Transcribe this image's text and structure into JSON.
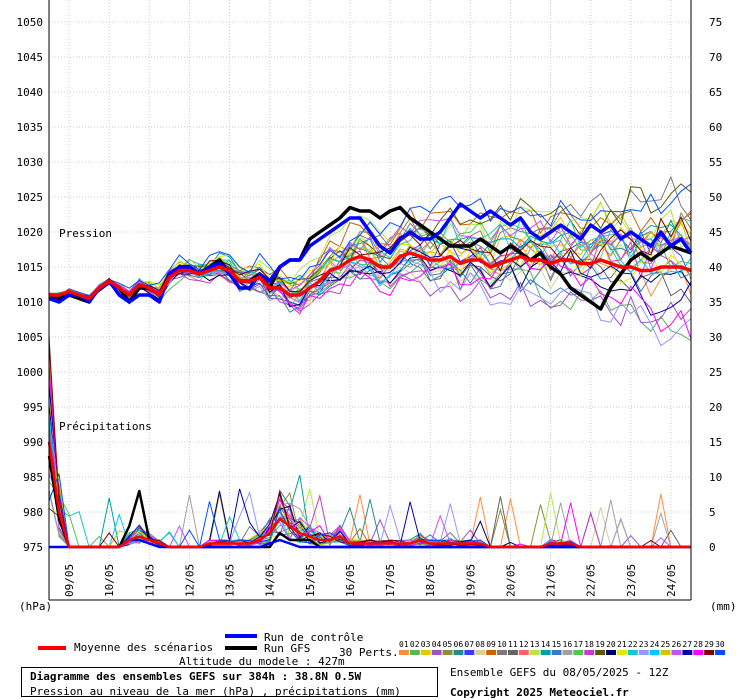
{
  "chart_data": {
    "type": "line",
    "left_axis": {
      "unit": "(hPa)",
      "ticks": [
        1050,
        1045,
        1040,
        1035,
        1030,
        1025,
        1020,
        1015,
        1010,
        1005,
        1000,
        995,
        990,
        985,
        980,
        975
      ],
      "range": [
        975,
        1050
      ]
    },
    "right_axis": {
      "unit": "(mm)",
      "ticks": [
        75,
        70,
        65,
        60,
        55,
        50,
        45,
        40,
        35,
        30,
        25,
        20,
        15,
        10,
        5,
        0
      ],
      "range": [
        0,
        75
      ]
    },
    "x_ticks": [
      "09/05",
      "10/05",
      "11/05",
      "12/05",
      "13/05",
      "14/05",
      "15/05",
      "16/05",
      "17/05",
      "18/05",
      "19/05",
      "20/05",
      "21/05",
      "22/05",
      "23/05",
      "24/05"
    ],
    "panel_labels": {
      "pressure": "Pression",
      "precip": "Précipitations"
    },
    "time_steps_hours": [
      0,
      6,
      12,
      18,
      24,
      30,
      36,
      42,
      48,
      54,
      60,
      66,
      72,
      78,
      84,
      90,
      96,
      102,
      108,
      114,
      120,
      126,
      132,
      138,
      144,
      150,
      156,
      162,
      168,
      174,
      180,
      186,
      192,
      198,
      204,
      210,
      216,
      222,
      228,
      234,
      240,
      246,
      252,
      258,
      264,
      270,
      276,
      282,
      288,
      294,
      300,
      306,
      312,
      318,
      324,
      330,
      336,
      342,
      348,
      354,
      360,
      366,
      372,
      378,
      384
    ],
    "series": [
      {
        "name": "Moyenne des scénarios",
        "color": "#ff0000",
        "width": 3.5,
        "pressure": [
          1011,
          1011,
          1011.5,
          1011,
          1010.5,
          1012,
          1013,
          1012,
          1011,
          1012.5,
          1012,
          1011,
          1013.5,
          1014.5,
          1014.5,
          1014,
          1014.5,
          1015,
          1014.5,
          1013,
          1013,
          1013.5,
          1012,
          1012,
          1011,
          1011,
          1012,
          1013,
          1014.5,
          1015,
          1016,
          1016.5,
          1016,
          1015,
          1015,
          1016.5,
          1017,
          1016.5,
          1016,
          1016,
          1016.5,
          1015.5,
          1016,
          1016,
          1015,
          1015.5,
          1016,
          1016.5,
          1016,
          1016,
          1015.5,
          1016,
          1016,
          1015.5,
          1015.5,
          1016,
          1015.5,
          1015,
          1015,
          1014.5,
          1014.5,
          1015,
          1015,
          1015,
          1014.5
        ],
        "precip": [
          15,
          5,
          0,
          0,
          0,
          0,
          0,
          0,
          1,
          1.5,
          1,
          0.5,
          0,
          0,
          0,
          0,
          0.5,
          0.5,
          0.5,
          0.5,
          0.5,
          1,
          2,
          4,
          3,
          2,
          1.5,
          1,
          1,
          1.5,
          0.5,
          0.5,
          0.5,
          0.5,
          0.5,
          0.5,
          0.5,
          1,
          0.5,
          0.5,
          0.5,
          0.5,
          0.5,
          0.5,
          0,
          0,
          0,
          0,
          0,
          0,
          0.5,
          0.5,
          0.5,
          0,
          0,
          0,
          0,
          0,
          0,
          0,
          0,
          0,
          0,
          0,
          0
        ]
      },
      {
        "name": "Run de contrôle",
        "color": "#0000ff",
        "width": 3.5,
        "pressure": [
          1010.5,
          1010,
          1011,
          1011,
          1010,
          1012,
          1013,
          1011,
          1010,
          1011,
          1011,
          1010,
          1014,
          1015,
          1015,
          1014,
          1015,
          1015.5,
          1014,
          1012,
          1012,
          1014,
          1013,
          1015,
          1016,
          1016,
          1018,
          1019,
          1020,
          1021,
          1022,
          1022,
          1020,
          1018,
          1017,
          1019,
          1020,
          1019,
          1019,
          1020,
          1022,
          1024,
          1023,
          1022,
          1023,
          1022,
          1021,
          1022,
          1020,
          1019,
          1020,
          1021,
          1020,
          1019,
          1021,
          1020,
          1021,
          1019,
          1020,
          1019,
          1018,
          1020,
          1018,
          1019,
          1017
        ],
        "precip": [
          0,
          0,
          0,
          0,
          0,
          0,
          0,
          0,
          1,
          1,
          0.5,
          0,
          0,
          0,
          0,
          0,
          0,
          0,
          0,
          0,
          0,
          0,
          0.5,
          1,
          0.5,
          0,
          0,
          0,
          0,
          0,
          0,
          0,
          0,
          0,
          0,
          0,
          0,
          0,
          0,
          0,
          0,
          0,
          0,
          0,
          0,
          0,
          0,
          0,
          0,
          0,
          0,
          0,
          0,
          0,
          0,
          0,
          0,
          0,
          0,
          0,
          0,
          0,
          0,
          0,
          0
        ]
      },
      {
        "name": "Run GFS",
        "color": "#000000",
        "width": 3.5,
        "pressure": [
          1010.5,
          1010.5,
          1011,
          1010.5,
          1010,
          1012,
          1013,
          1012,
          1010,
          1012,
          1012,
          1011,
          1014,
          1015,
          1015,
          1014,
          1015,
          1016,
          1014,
          1013,
          1013,
          1014,
          1012,
          1015,
          1016,
          1016,
          1019,
          1020,
          1021,
          1022,
          1023.5,
          1023,
          1023,
          1022,
          1023,
          1023.5,
          1022,
          1021,
          1020,
          1019,
          1018,
          1018,
          1018,
          1019,
          1018,
          1017,
          1018,
          1017,
          1016,
          1017,
          1015,
          1014,
          1012,
          1011,
          1010,
          1009,
          1012,
          1014,
          1016,
          1017,
          1016,
          1017,
          1018,
          1017.5,
          1017
        ],
        "precip": [
          13,
          4,
          0,
          0,
          0,
          0,
          0,
          0,
          3,
          8,
          1,
          0.5,
          0,
          0,
          0,
          0,
          0,
          0,
          0,
          0,
          0,
          0,
          0,
          2,
          1,
          1,
          1,
          0,
          0,
          0,
          0,
          0,
          0,
          0,
          0,
          0,
          0,
          0,
          0,
          0,
          0,
          0,
          0,
          0,
          0,
          0,
          0,
          0,
          0,
          0,
          0,
          0,
          0,
          0,
          0,
          0,
          0,
          0,
          0,
          0,
          0,
          0,
          0,
          0,
          0
        ]
      }
    ],
    "legend": {
      "mean": "Moyenne des scénarios",
      "control": "Run de contrôle",
      "gfs": "Run GFS",
      "perts": "30 Perts."
    },
    "perturbations": {
      "labels": [
        "01",
        "02",
        "03",
        "04",
        "05",
        "06",
        "07",
        "08",
        "09",
        "10",
        "11",
        "12",
        "13",
        "14",
        "15",
        "16",
        "17",
        "18",
        "19",
        "20",
        "21",
        "22",
        "23",
        "24",
        "25",
        "26",
        "27",
        "28",
        "29",
        "30"
      ],
      "colors": [
        "#ff8c3c",
        "#5ab45a",
        "#e6c800",
        "#a050c8",
        "#8c8c3c",
        "#288c8c",
        "#3c3cff",
        "#d4d0a0",
        "#c86400",
        "#7a7a7a",
        "#646464",
        "#ff6060",
        "#b4e650",
        "#00a0a0",
        "#3c78c8",
        "#a0a0a0",
        "#50c850",
        "#c83cc8",
        "#5a5a00",
        "#000064",
        "#e6e600",
        "#14c8c8",
        "#9696ff",
        "#00c8ff",
        "#c8c800",
        "#c850ff",
        "#0000aa",
        "#ff00ff",
        "#800000",
        "#0050ff"
      ]
    }
  },
  "footer": {
    "altitude": "Altitude du modele : 427m",
    "title": "Diagramme des ensembles GEFS sur 384h : 38.8N 0.5W",
    "subtitle": "Pression au niveau de la mer (hPa) , précipitations (mm)",
    "ensemble_run": "Ensemble GEFS du 08/05/2025 - 12Z",
    "copyright": "Copyright 2025 Meteociel.fr"
  }
}
